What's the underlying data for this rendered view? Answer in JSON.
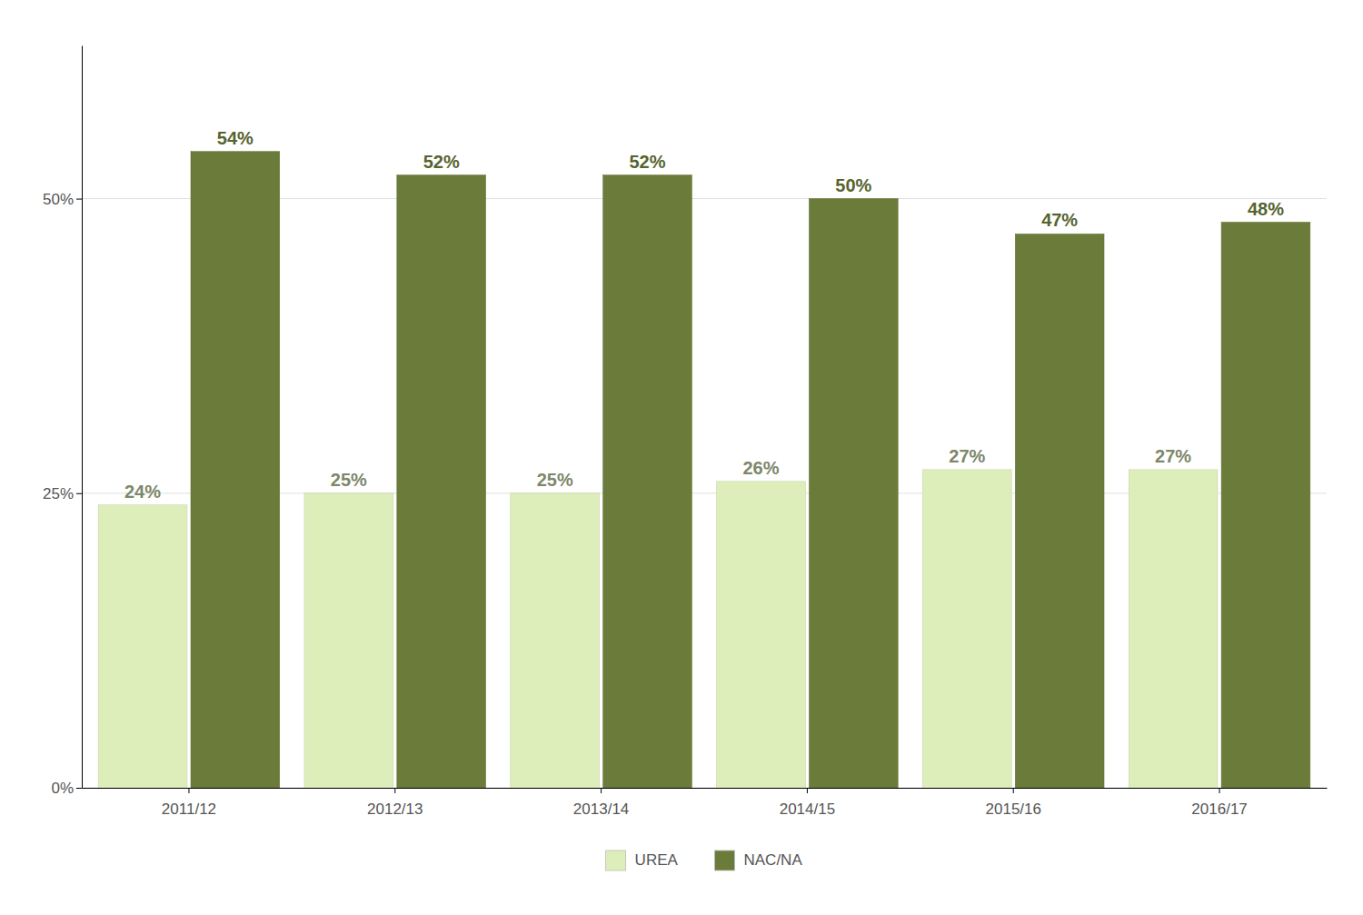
{
  "chart_data": {
    "type": "bar",
    "categories": [
      "2011/12",
      "2012/13",
      "2013/14",
      "2014/15",
      "2015/16",
      "2016/17"
    ],
    "series": [
      {
        "name": "UREA",
        "color": "#ddeebb",
        "values": [
          24,
          25,
          25,
          26,
          27,
          27
        ],
        "value_labels": [
          "24%",
          "25%",
          "25%",
          "26%",
          "27%",
          "27%"
        ]
      },
      {
        "name": "NAC/NA",
        "color": "#6b7c3a",
        "values": [
          54,
          52,
          52,
          50,
          47,
          48
        ],
        "value_labels": [
          "54%",
          "52%",
          "52%",
          "50%",
          "47%",
          "48%"
        ]
      }
    ],
    "ylim": [
      0,
      63
    ],
    "yticks": [
      {
        "value": 0,
        "label": "0%"
      },
      {
        "value": 25,
        "label": "25%"
      },
      {
        "value": 50,
        "label": "50%"
      }
    ],
    "grid": true,
    "legend": "bottom",
    "data_labels": true
  }
}
